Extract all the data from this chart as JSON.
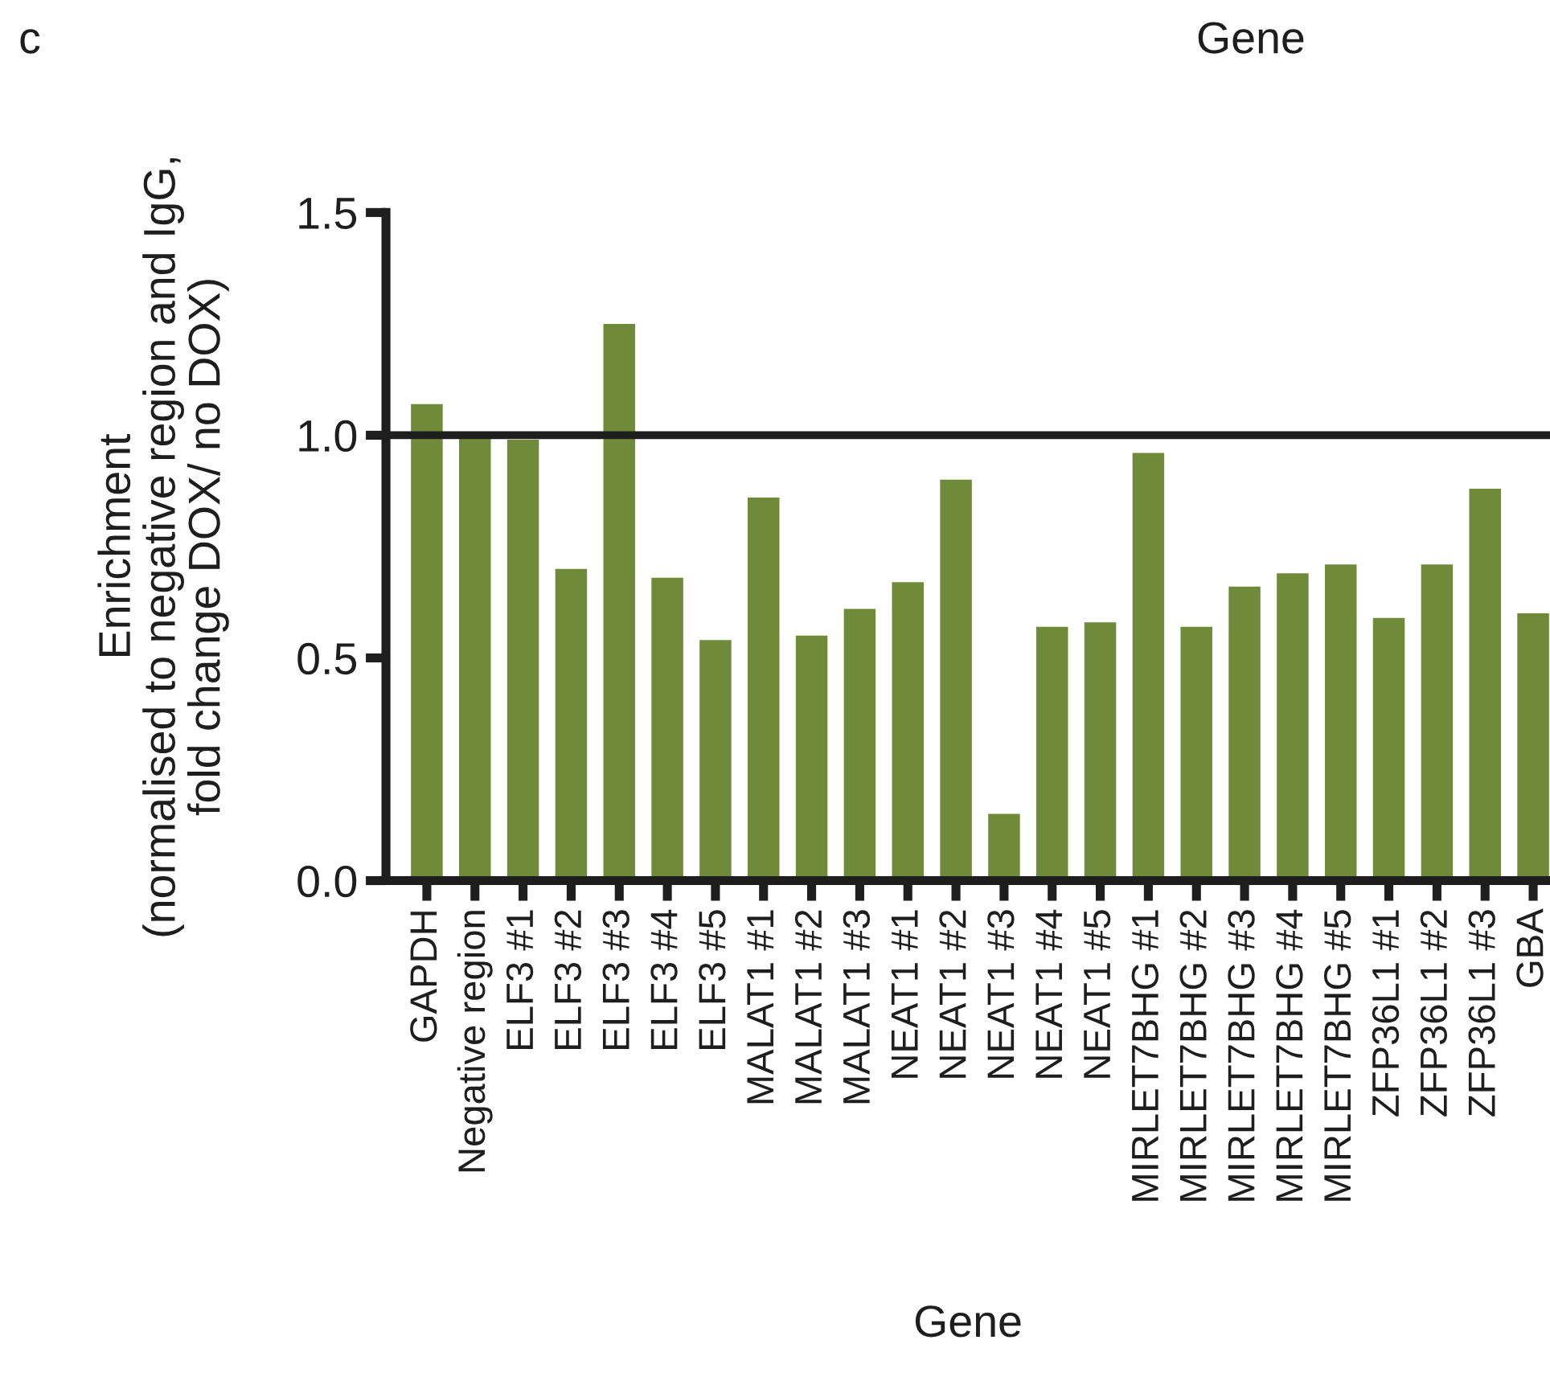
{
  "chart_data": {
    "type": "bar",
    "xlabel": "Gene",
    "ylabel": "Enrichment\n(normalised to negative region and IgG,\nfold change DOX/ no DOX)",
    "annotations": [
      "c",
      "Gene"
    ],
    "categories": [
      "GAPDH",
      "Negative region",
      "ELF3 #1",
      "ELF3 #2",
      "ELF3 #3",
      "ELF3 #4",
      "ELF3 #5",
      "MALAT1 #1",
      "MALAT1 #2",
      "MALAT1 #3",
      "NEAT1 #1",
      "NEAT1 #2",
      "NEAT1 #3",
      "NEAT1 #4",
      "NEAT1 #5",
      "MIRLET7BHG #1",
      "MIRLET7BHG #2",
      "MIRLET7BHG #3",
      "MIRLET7BHG #4",
      "MIRLET7BHG #5",
      "ZFP36L1 #1",
      "ZFP36L1 #2",
      "ZFP36L1 #3",
      "GBA"
    ],
    "values": [
      1.07,
      1.0,
      0.99,
      0.7,
      1.25,
      0.68,
      0.54,
      0.86,
      0.55,
      0.61,
      0.67,
      0.9,
      0.15,
      0.57,
      0.58,
      0.96,
      0.57,
      0.66,
      0.69,
      0.71,
      0.59,
      0.71,
      0.88,
      0.6
    ],
    "color": "#6f8b3a",
    "ylim": [
      0,
      1.5
    ],
    "yticks": [
      {
        "value": 0,
        "label": "0.0"
      },
      0.5,
      {
        "value": 1,
        "label": "1.0"
      },
      1.5
    ],
    "ref_lines": [
      {
        "axis": "y",
        "value": 1.0,
        "color": "#1e1e1e",
        "line_style": "solid"
      }
    ],
    "grid": false,
    "legend": false
  }
}
